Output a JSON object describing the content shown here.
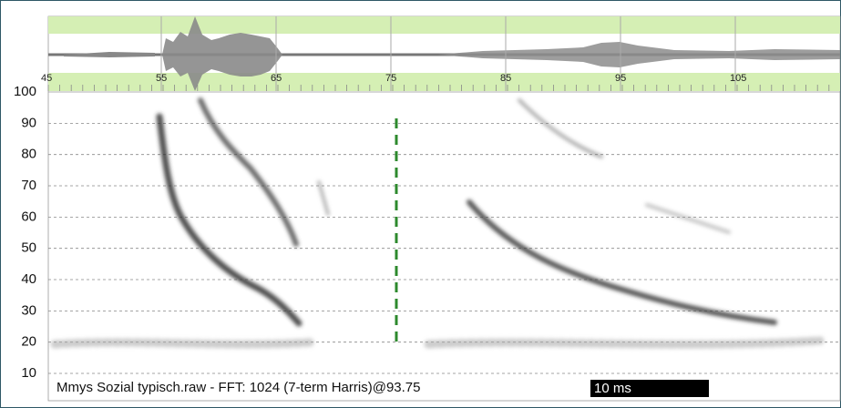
{
  "waveform_axis": {
    "ticks": [
      45,
      55,
      65,
      75,
      85,
      95,
      105
    ]
  },
  "frequency_axis": {
    "ticks": [
      10,
      20,
      30,
      40,
      50,
      60,
      70,
      80,
      90,
      100
    ]
  },
  "status": {
    "caption": "Mmys Sozial typisch.raw - FFT: 1024 (7-term Harris)@93.75",
    "scale_bar": "10 ms"
  }
}
